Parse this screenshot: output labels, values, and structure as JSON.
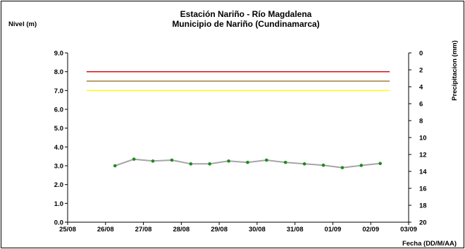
{
  "chart_data": {
    "type": "line",
    "title": "Estación Nariño  - Río Magdalena",
    "subtitle": "Municipio de Nariño (Cundinamarca)",
    "ylabel": "Nivel (m)",
    "y2label": "Precipitacion (mm)",
    "xlabel": "Fecha (DD/M/AA)",
    "ylim": [
      0,
      9
    ],
    "y2lim": [
      0,
      20
    ],
    "y2_reversed": true,
    "y_ticks": [
      "0.0",
      "1.0",
      "2.0",
      "3.0",
      "4.0",
      "5.0",
      "6.0",
      "7.0",
      "8.0",
      "9.0"
    ],
    "y2_ticks": [
      "0",
      "2",
      "4",
      "6",
      "8",
      "10",
      "12",
      "14",
      "16",
      "18",
      "20"
    ],
    "x_ticks": [
      "25/08",
      "26/08",
      "27/08",
      "28/08",
      "29/08",
      "30/08",
      "31/08",
      "01/09",
      "02/09",
      "03/09"
    ],
    "grid": false,
    "thresholds": [
      {
        "value": 8.0,
        "color": "#d00000"
      },
      {
        "value": 7.5,
        "color": "#8b6914"
      },
      {
        "value": 7.0,
        "color": "#ffff00"
      }
    ],
    "series": [
      {
        "line_color": "#a6a6a6",
        "marker_color": "#1a8c1a",
        "x": [
          1.25,
          1.75,
          2.25,
          2.75,
          3.25,
          3.75,
          4.25,
          4.75,
          5.25,
          5.75,
          6.25,
          6.75,
          7.25,
          7.75,
          8.25
        ],
        "values": [
          3.0,
          3.35,
          3.25,
          3.3,
          3.1,
          3.1,
          3.25,
          3.18,
          3.3,
          3.18,
          3.1,
          3.03,
          2.9,
          3.02,
          3.12
        ]
      }
    ]
  }
}
